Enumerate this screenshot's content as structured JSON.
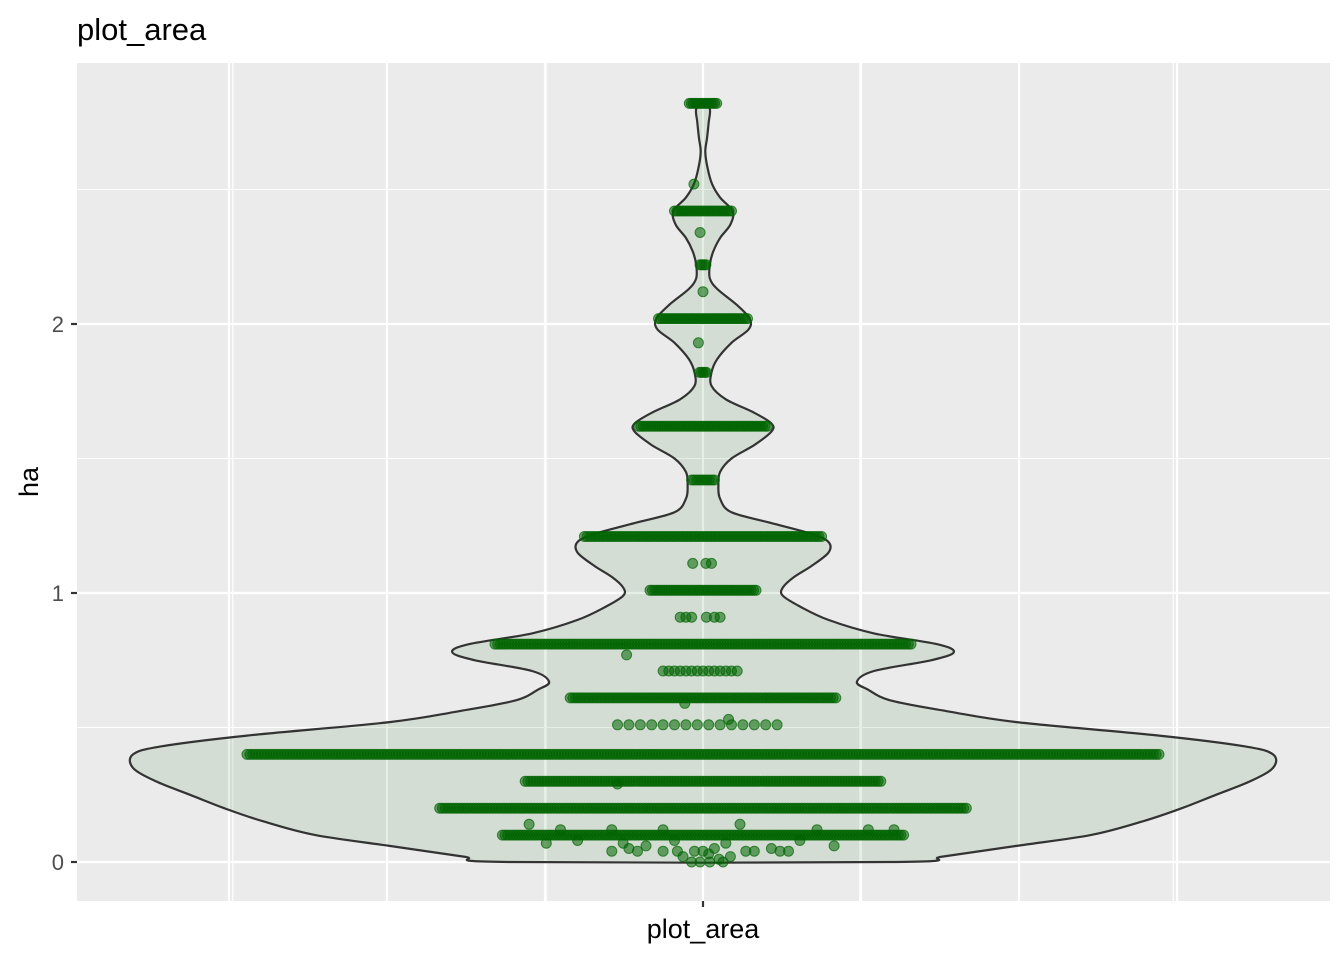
{
  "chart_data": {
    "type": "violin",
    "title": "plot_area",
    "xlabel": "plot_area",
    "ylabel": "ha",
    "categories": [
      "plot_area"
    ],
    "ylim": [
      -0.05,
      3.07
    ],
    "y_ticks": [
      0,
      1,
      2
    ],
    "y_tick_labels": [
      "0",
      "1",
      "2"
    ],
    "grid": true,
    "legend": "none",
    "colors": {
      "panel_background": "#ebebeb",
      "grid": "#ffffff",
      "violin_fill": "#006400",
      "violin_outline": "#333333",
      "points": "#006400"
    },
    "violin_half_width": [
      [
        0.0,
        0.34
      ],
      [
        0.02,
        0.42
      ],
      [
        0.06,
        0.55
      ],
      [
        0.1,
        0.68
      ],
      [
        0.15,
        0.77
      ],
      [
        0.2,
        0.84
      ],
      [
        0.25,
        0.9
      ],
      [
        0.3,
        0.96
      ],
      [
        0.35,
        1.0
      ],
      [
        0.4,
        1.0
      ],
      [
        0.43,
        0.95
      ],
      [
        0.47,
        0.8
      ],
      [
        0.52,
        0.55
      ],
      [
        0.56,
        0.43
      ],
      [
        0.6,
        0.33
      ],
      [
        0.64,
        0.29
      ],
      [
        0.67,
        0.27
      ],
      [
        0.71,
        0.3
      ],
      [
        0.75,
        0.4
      ],
      [
        0.78,
        0.44
      ],
      [
        0.81,
        0.41
      ],
      [
        0.85,
        0.3
      ],
      [
        0.9,
        0.22
      ],
      [
        0.95,
        0.17
      ],
      [
        0.99,
        0.14
      ],
      [
        1.02,
        0.14
      ],
      [
        1.06,
        0.16
      ],
      [
        1.1,
        0.19
      ],
      [
        1.15,
        0.22
      ],
      [
        1.19,
        0.22
      ],
      [
        1.22,
        0.19
      ],
      [
        1.26,
        0.12
      ],
      [
        1.3,
        0.05
      ],
      [
        1.35,
        0.03
      ],
      [
        1.4,
        0.027
      ],
      [
        1.45,
        0.03
      ],
      [
        1.5,
        0.05
      ],
      [
        1.55,
        0.09
      ],
      [
        1.6,
        0.12
      ],
      [
        1.63,
        0.12
      ],
      [
        1.67,
        0.09
      ],
      [
        1.72,
        0.04
      ],
      [
        1.77,
        0.015
      ],
      [
        1.82,
        0.015
      ],
      [
        1.87,
        0.025
      ],
      [
        1.93,
        0.05
      ],
      [
        1.98,
        0.08
      ],
      [
        2.02,
        0.082
      ],
      [
        2.07,
        0.06
      ],
      [
        2.13,
        0.025
      ],
      [
        2.17,
        0.012
      ],
      [
        2.22,
        0.012
      ],
      [
        2.27,
        0.018
      ],
      [
        2.32,
        0.03
      ],
      [
        2.37,
        0.048
      ],
      [
        2.42,
        0.052
      ],
      [
        2.47,
        0.03
      ],
      [
        2.52,
        0.016
      ],
      [
        2.58,
        0.008
      ],
      [
        2.64,
        0.004
      ],
      [
        2.69,
        0.007
      ],
      [
        2.75,
        0.01
      ],
      [
        2.8,
        0.012
      ],
      [
        2.82,
        0.0
      ]
    ],
    "point_rows": [
      {
        "ha": 2.82,
        "half_spread": 0.024,
        "count": 15
      },
      {
        "ha": 2.42,
        "half_spread": 0.05,
        "count": 25
      },
      {
        "ha": 2.22,
        "half_spread": 0.005,
        "count": 4
      },
      {
        "ha": 2.02,
        "half_spread": 0.078,
        "count": 40
      },
      {
        "ha": 1.82,
        "half_spread": 0.006,
        "count": 5
      },
      {
        "ha": 1.62,
        "half_spread": 0.113,
        "count": 55
      },
      {
        "ha": 1.42,
        "half_spread": 0.02,
        "count": 10
      },
      {
        "ha": 1.21,
        "half_spread": 0.208,
        "count": 90
      },
      {
        "ha": 1.01,
        "half_spread": 0.093,
        "count": 45
      },
      {
        "ha": 0.81,
        "half_spread": 0.365,
        "count": 150
      },
      {
        "ha": 0.61,
        "half_spread": 0.233,
        "count": 100
      },
      {
        "ha": 0.4,
        "half_spread": 0.8,
        "count": 320
      },
      {
        "ha": 0.3,
        "half_spread": 0.312,
        "count": 130
      },
      {
        "ha": 0.2,
        "half_spread": 0.462,
        "count": 190
      },
      {
        "ha": 0.1,
        "half_spread": 0.352,
        "count": 150
      }
    ],
    "scattered_points": [
      {
        "x": -0.016,
        "ha": 2.52
      },
      {
        "x": -0.005,
        "ha": 2.34
      },
      {
        "x": 0.0,
        "ha": 2.12
      },
      {
        "x": -0.008,
        "ha": 1.93
      },
      {
        "x": -0.018,
        "ha": 1.11
      },
      {
        "x": 0.005,
        "ha": 1.11
      },
      {
        "x": 0.015,
        "ha": 1.11
      },
      {
        "x": -0.04,
        "ha": 0.91
      },
      {
        "x": -0.03,
        "ha": 0.91
      },
      {
        "x": -0.02,
        "ha": 0.91
      },
      {
        "x": 0.006,
        "ha": 0.91
      },
      {
        "x": 0.02,
        "ha": 0.91
      },
      {
        "x": 0.03,
        "ha": 0.91
      },
      {
        "x": -0.134,
        "ha": 0.77
      },
      {
        "x": -0.07,
        "ha": 0.71
      },
      {
        "x": -0.06,
        "ha": 0.71
      },
      {
        "x": -0.05,
        "ha": 0.71
      },
      {
        "x": -0.04,
        "ha": 0.71
      },
      {
        "x": -0.03,
        "ha": 0.71
      },
      {
        "x": -0.02,
        "ha": 0.71
      },
      {
        "x": -0.01,
        "ha": 0.71
      },
      {
        "x": 0.0,
        "ha": 0.71
      },
      {
        "x": 0.01,
        "ha": 0.71
      },
      {
        "x": 0.02,
        "ha": 0.71
      },
      {
        "x": 0.03,
        "ha": 0.71
      },
      {
        "x": 0.04,
        "ha": 0.71
      },
      {
        "x": 0.05,
        "ha": 0.71
      },
      {
        "x": 0.06,
        "ha": 0.71
      },
      {
        "x": -0.032,
        "ha": 0.59
      },
      {
        "x": 0.045,
        "ha": 0.53
      },
      {
        "x": -0.15,
        "ha": 0.51
      },
      {
        "x": -0.13,
        "ha": 0.51
      },
      {
        "x": -0.11,
        "ha": 0.51
      },
      {
        "x": -0.09,
        "ha": 0.51
      },
      {
        "x": -0.07,
        "ha": 0.51
      },
      {
        "x": -0.05,
        "ha": 0.51
      },
      {
        "x": -0.03,
        "ha": 0.51
      },
      {
        "x": -0.01,
        "ha": 0.51
      },
      {
        "x": 0.01,
        "ha": 0.51
      },
      {
        "x": 0.03,
        "ha": 0.51
      },
      {
        "x": 0.05,
        "ha": 0.51
      },
      {
        "x": 0.07,
        "ha": 0.51
      },
      {
        "x": 0.09,
        "ha": 0.51
      },
      {
        "x": 0.11,
        "ha": 0.51
      },
      {
        "x": 0.13,
        "ha": 0.51
      },
      {
        "x": -0.15,
        "ha": 0.29
      },
      {
        "x": -0.305,
        "ha": 0.14
      },
      {
        "x": -0.25,
        "ha": 0.12
      },
      {
        "x": -0.16,
        "ha": 0.12
      },
      {
        "x": -0.07,
        "ha": 0.12
      },
      {
        "x": 0.065,
        "ha": 0.14
      },
      {
        "x": 0.2,
        "ha": 0.12
      },
      {
        "x": 0.29,
        "ha": 0.12
      },
      {
        "x": 0.335,
        "ha": 0.12
      },
      {
        "x": -0.275,
        "ha": 0.07
      },
      {
        "x": -0.22,
        "ha": 0.08
      },
      {
        "x": -0.14,
        "ha": 0.07
      },
      {
        "x": -0.1,
        "ha": 0.06
      },
      {
        "x": -0.05,
        "ha": 0.08
      },
      {
        "x": 0.04,
        "ha": 0.07
      },
      {
        "x": 0.17,
        "ha": 0.08
      },
      {
        "x": 0.23,
        "ha": 0.06
      },
      {
        "x": -0.16,
        "ha": 0.04
      },
      {
        "x": -0.13,
        "ha": 0.05
      },
      {
        "x": -0.115,
        "ha": 0.04
      },
      {
        "x": -0.07,
        "ha": 0.04
      },
      {
        "x": -0.045,
        "ha": 0.04
      },
      {
        "x": -0.035,
        "ha": 0.02
      },
      {
        "x": -0.015,
        "ha": 0.04
      },
      {
        "x": -0.005,
        "ha": 0.0
      },
      {
        "x": 0.0,
        "ha": 0.04
      },
      {
        "x": 0.01,
        "ha": 0.03
      },
      {
        "x": 0.02,
        "ha": 0.05
      },
      {
        "x": 0.028,
        "ha": 0.01
      },
      {
        "x": 0.035,
        "ha": 0.0
      },
      {
        "x": 0.048,
        "ha": 0.02
      },
      {
        "x": 0.075,
        "ha": 0.04
      },
      {
        "x": 0.09,
        "ha": 0.04
      },
      {
        "x": 0.12,
        "ha": 0.05
      },
      {
        "x": 0.135,
        "ha": 0.04
      },
      {
        "x": 0.15,
        "ha": 0.04
      },
      {
        "x": -0.02,
        "ha": 0.0
      },
      {
        "x": 0.012,
        "ha": 0.0
      }
    ]
  }
}
